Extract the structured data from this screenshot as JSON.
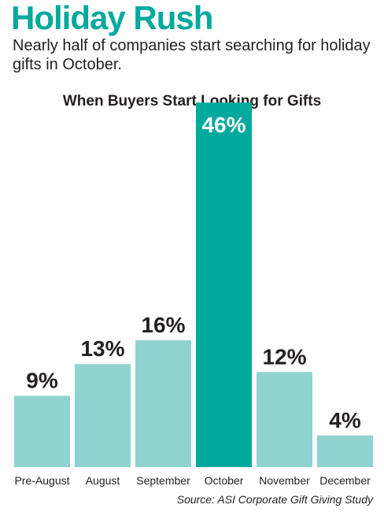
{
  "header": {
    "title": "Holiday Rush",
    "subtitle": "Nearly half of companies start searching for holiday gifts in October."
  },
  "chart_data": {
    "type": "bar",
    "title": "When Buyers Start Looking for Gifts",
    "categories": [
      "Pre-August",
      "August",
      "September",
      "October",
      "November",
      "December"
    ],
    "values": [
      9,
      13,
      16,
      46,
      12,
      4
    ],
    "value_suffix": "%",
    "highlight_index": 3,
    "ylim": [
      0,
      50
    ],
    "grid": false,
    "colors": {
      "bar": "#8fd3d0",
      "highlight": "#00a99d",
      "label": "#231f20",
      "highlight_label": "#ffffff"
    }
  },
  "source": "Source: ASI Corporate Gift Giving Study"
}
